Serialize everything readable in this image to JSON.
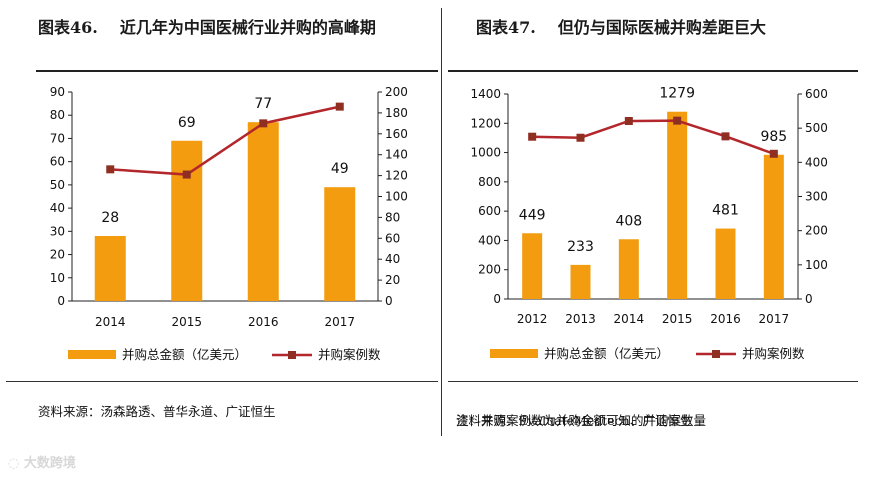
{
  "colors": {
    "bar": "#f39c0f",
    "line": "#b3262b",
    "marker": "#8f2f22"
  },
  "panels": [
    {
      "title_num": "图表46.",
      "title_text": "近几年为中国医械行业并购的高峰期",
      "note": "",
      "source": "资料来源：汤森路透、普华永道、广证恒生",
      "chart_data": {
        "type": "bar+line",
        "categories": [
          "2014",
          "2015",
          "2016",
          "2017"
        ],
        "series": [
          {
            "name": "并购总金额（亿美元）",
            "type": "bar",
            "axis": "left",
            "values": [
              28,
              69,
              77,
              49
            ]
          },
          {
            "name": "并购案例数",
            "type": "line",
            "axis": "right",
            "values": [
              126,
              121,
              170,
              186
            ]
          }
        ],
        "data_labels": [
          "28",
          "69",
          "77",
          "49"
        ],
        "left_axis": {
          "min": 0,
          "max": 90,
          "step": 10,
          "ticks": [
            "0",
            "10",
            "20",
            "30",
            "40",
            "50",
            "60",
            "70",
            "80",
            "90"
          ]
        },
        "right_axis": {
          "min": 0,
          "max": 200,
          "step": 20,
          "ticks": [
            "0",
            "20",
            "40",
            "60",
            "80",
            "100",
            "120",
            "140",
            "160",
            "180",
            "200"
          ]
        },
        "legend": {
          "bar": "并购总金额（亿美元）",
          "line": "并购案例数"
        }
      }
    },
    {
      "title_num": "图表47.",
      "title_text": "但仍与国际医械并购差距巨大",
      "note": "注：并购案例数为并购金额可知的并购案数量",
      "source": "资料来源：EvaluateMedtech、广证恒生",
      "chart_data": {
        "type": "bar+line",
        "categories": [
          "2012",
          "2013",
          "2014",
          "2015",
          "2016",
          "2017"
        ],
        "series": [
          {
            "name": "并购总金额（亿美元）",
            "type": "bar",
            "axis": "left",
            "values": [
              449,
              233,
              408,
              1279,
              481,
              985
            ]
          },
          {
            "name": "并购案例数",
            "type": "line",
            "axis": "right",
            "values": [
              475,
              472,
              521,
              522,
              476,
              425
            ]
          }
        ],
        "data_labels": [
          "449",
          "233",
          "408",
          "1279",
          "481",
          "985"
        ],
        "left_axis": {
          "min": 0,
          "max": 1400,
          "step": 200,
          "ticks": [
            "0",
            "200",
            "400",
            "600",
            "800",
            "1000",
            "1200",
            "1400"
          ]
        },
        "right_axis": {
          "min": 0,
          "max": 600,
          "step": 100,
          "ticks": [
            "0",
            "100",
            "200",
            "300",
            "400",
            "500",
            "600"
          ]
        },
        "legend": {
          "bar": "并购总金额（亿美元）",
          "line": "并购案例数"
        }
      }
    }
  ],
  "watermark": "大数跨境"
}
